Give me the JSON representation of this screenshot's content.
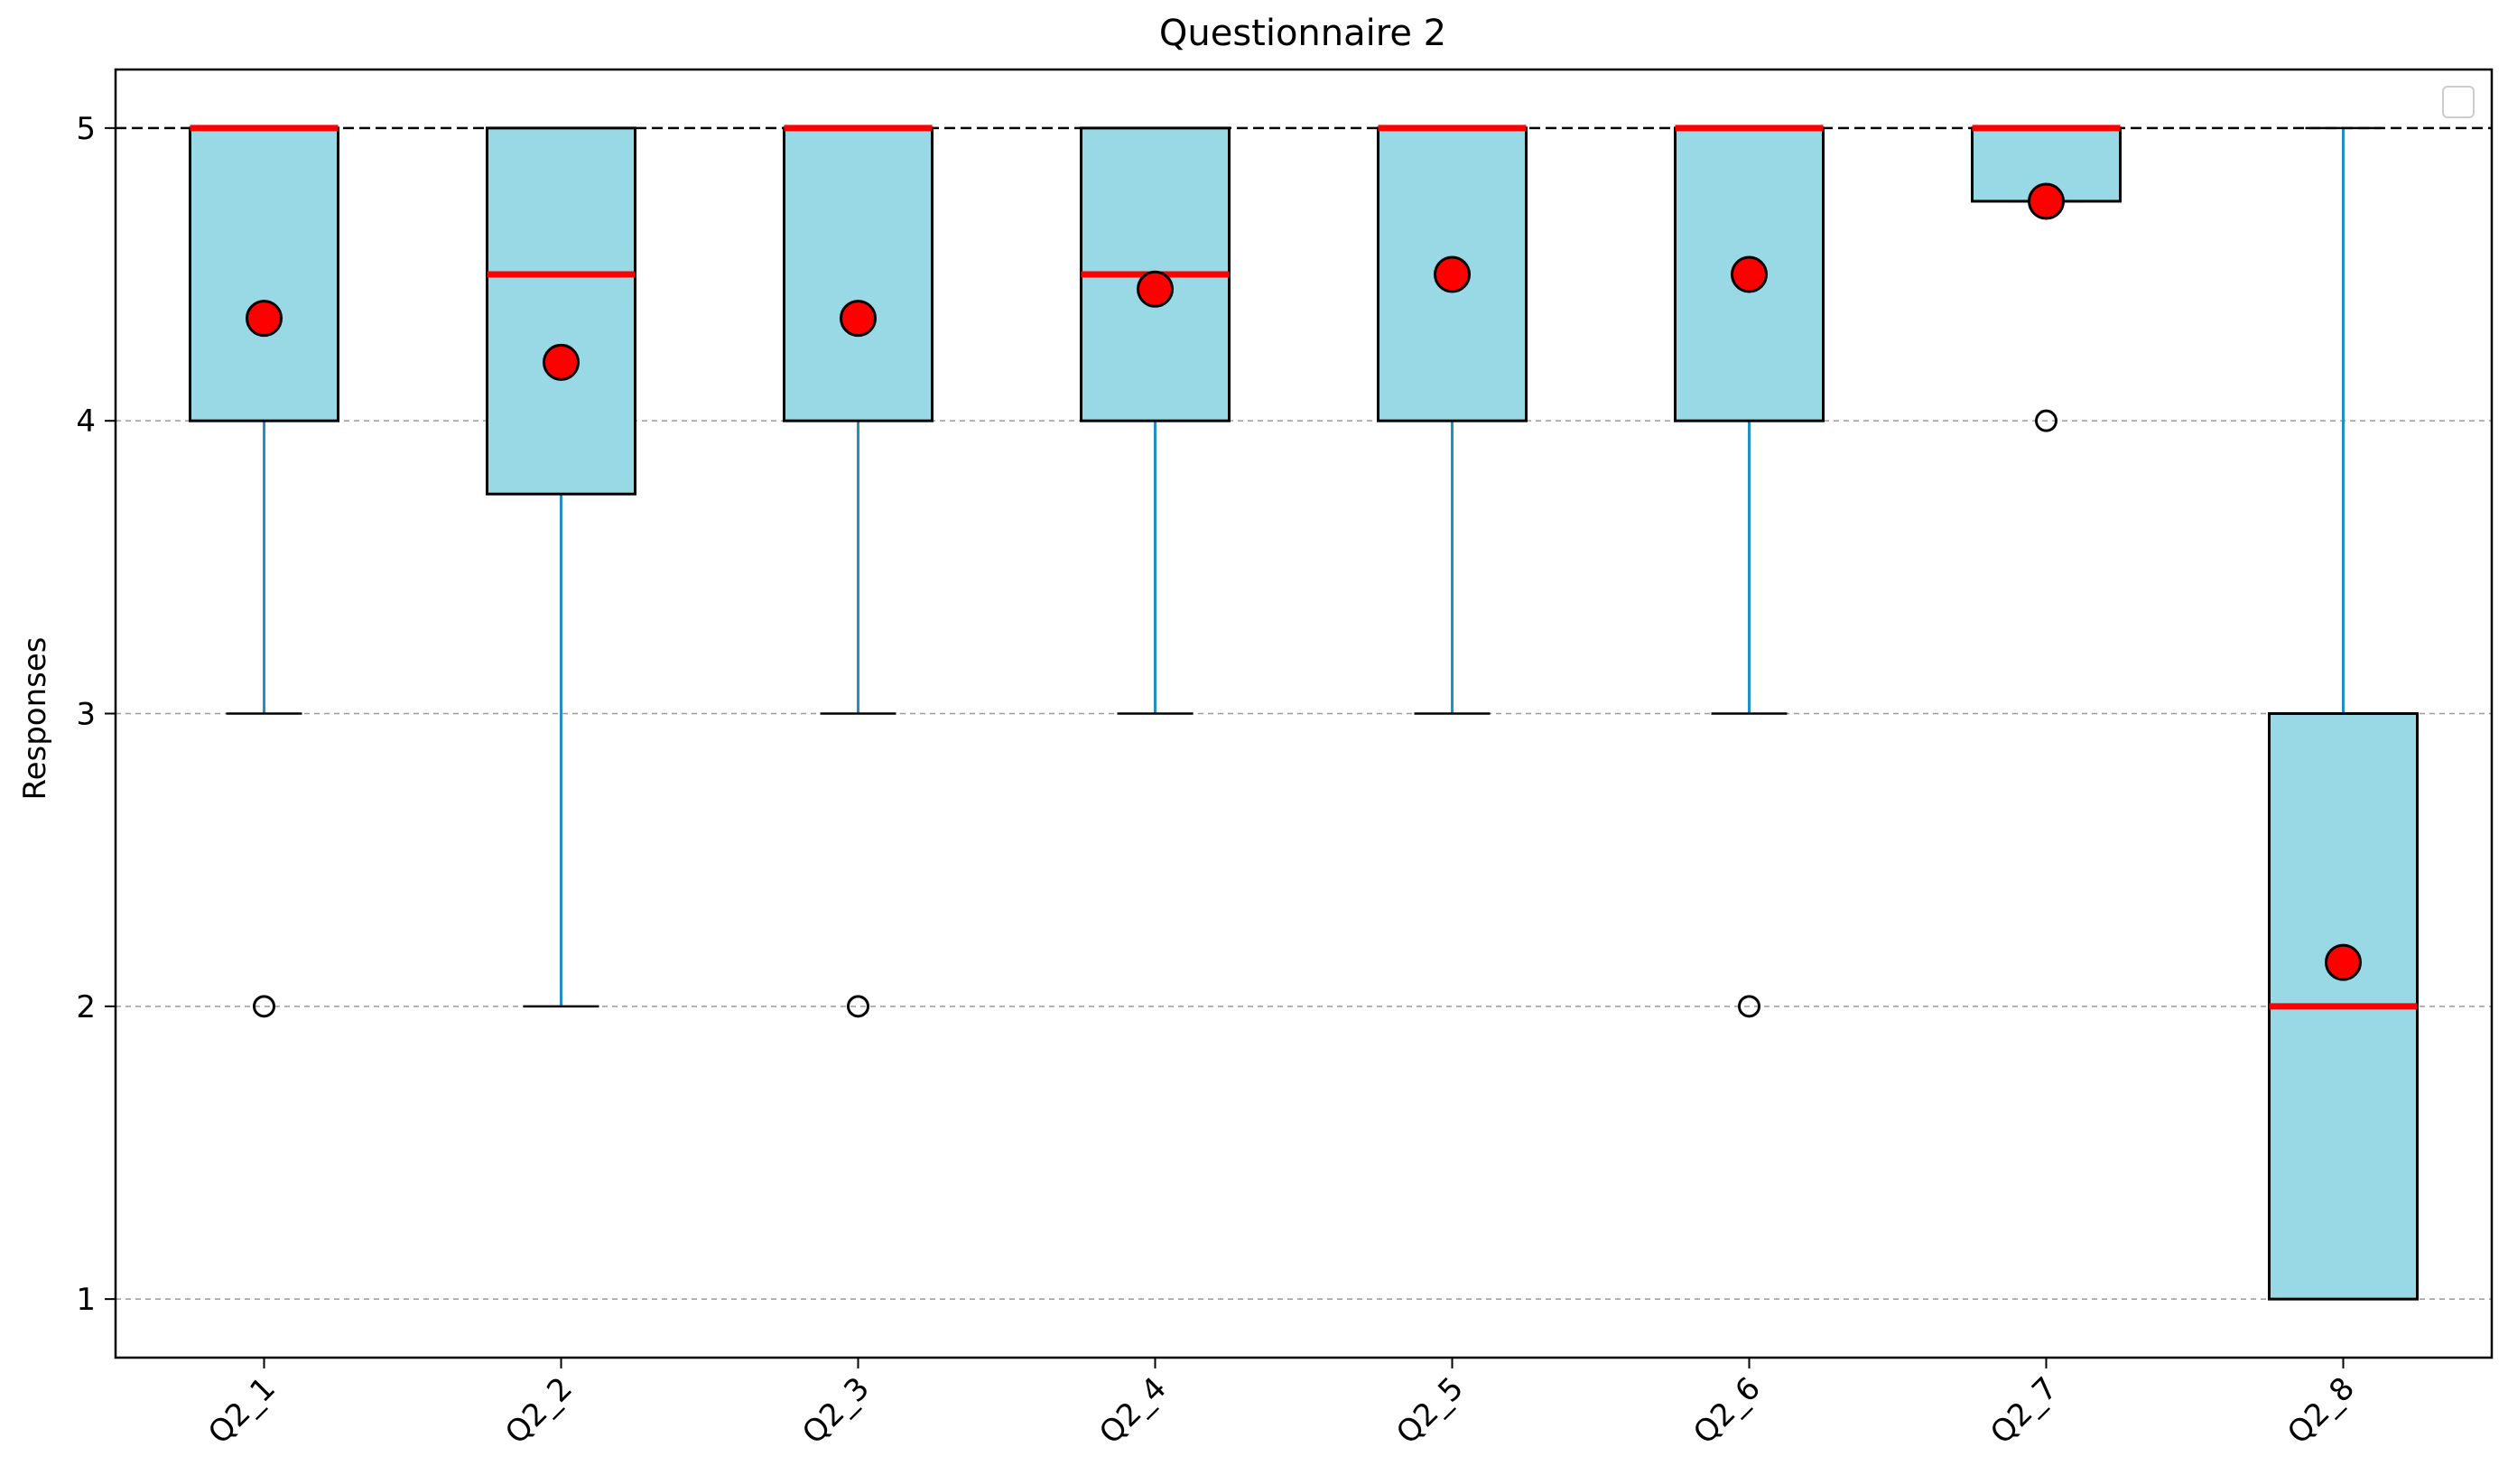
{
  "chart_data": {
    "type": "boxplot",
    "title": "Questionnaire 2",
    "xlabel": "",
    "ylabel": "Responses",
    "ylim": [
      0.8,
      5.2
    ],
    "yticks": [
      1,
      2,
      3,
      4,
      5
    ],
    "grid": "y-dashed",
    "reference_line": 5,
    "legend": "top-right",
    "categories": [
      "Q2_1",
      "Q2_2",
      "Q2_3",
      "Q2_4",
      "Q2_5",
      "Q2_6",
      "Q2_7",
      "Q2_8"
    ],
    "boxes": [
      {
        "label": "Q2_1",
        "whisker_low": 3,
        "q1": 4,
        "median": 5,
        "q3": 5,
        "whisker_high": 5,
        "mean": 4.35,
        "outliers": [
          2
        ]
      },
      {
        "label": "Q2_2",
        "whisker_low": 2,
        "q1": 3.75,
        "median": 4.5,
        "q3": 5,
        "whisker_high": 5,
        "mean": 4.2,
        "outliers": []
      },
      {
        "label": "Q2_3",
        "whisker_low": 3,
        "q1": 4,
        "median": 5,
        "q3": 5,
        "whisker_high": 5,
        "mean": 4.35,
        "outliers": [
          2
        ]
      },
      {
        "label": "Q2_4",
        "whisker_low": 3,
        "q1": 4,
        "median": 4.5,
        "q3": 5,
        "whisker_high": 5,
        "mean": 4.45,
        "outliers": []
      },
      {
        "label": "Q2_5",
        "whisker_low": 3,
        "q1": 4,
        "median": 5,
        "q3": 5,
        "whisker_high": 5,
        "mean": 4.5,
        "outliers": []
      },
      {
        "label": "Q2_6",
        "whisker_low": 3,
        "q1": 4,
        "median": 5,
        "q3": 5,
        "whisker_high": 5,
        "mean": 4.5,
        "outliers": [
          2
        ]
      },
      {
        "label": "Q2_7",
        "whisker_low": 4.75,
        "q1": 4.75,
        "median": 5,
        "q3": 5,
        "whisker_high": 5,
        "mean": 4.75,
        "outliers": [
          4
        ]
      },
      {
        "label": "Q2_8",
        "whisker_low": 1,
        "q1": 1,
        "median": 2,
        "q3": 3,
        "whisker_high": 5,
        "mean": 2.15,
        "outliers": []
      }
    ],
    "colors": {
      "box_fill": "#99d9e6",
      "box_edge": "#000000",
      "whisker": "#1f8fc6",
      "median": "#ff0000",
      "mean_fill": "#ff0000",
      "grid": "#9a9a9a",
      "reference": "#000000"
    }
  }
}
